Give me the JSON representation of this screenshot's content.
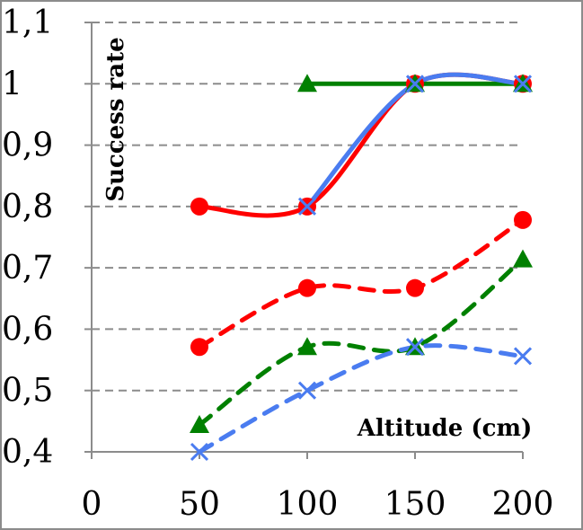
{
  "chart_data": {
    "type": "line",
    "xlabel": "Altitude (cm)",
    "ylabel": "Success rate",
    "xlim": [
      0,
      200
    ],
    "ylim": [
      0.4,
      1.1
    ],
    "grid": "horizontal dashed",
    "x_ticks": [
      "0",
      "50",
      "100",
      "150",
      "200"
    ],
    "y_ticks": [
      "0,4",
      "0,5",
      "0,6",
      "0,7",
      "0,8",
      "0,9",
      "1",
      "1,1"
    ],
    "series": [
      {
        "color": "#ff0000",
        "line_style": "solid",
        "marker": "circle",
        "points": [
          {
            "x": 50,
            "y": 0.8
          },
          {
            "x": 100,
            "y": 0.8
          },
          {
            "x": 150,
            "y": 1.0
          },
          {
            "x": 200,
            "y": 1.0
          }
        ]
      },
      {
        "color": "#008000",
        "line_style": "solid",
        "marker": "triangle",
        "points": [
          {
            "x": 100,
            "y": 1.0
          },
          {
            "x": 150,
            "y": 1.0
          },
          {
            "x": 200,
            "y": 1.0
          }
        ]
      },
      {
        "color": "#4a7cf0",
        "line_style": "solid",
        "marker": "x",
        "points": [
          {
            "x": 100,
            "y": 0.8
          },
          {
            "x": 150,
            "y": 1.0
          },
          {
            "x": 200,
            "y": 1.0
          }
        ]
      },
      {
        "color": "#ff0000",
        "line_style": "dashed",
        "marker": "circle",
        "points": [
          {
            "x": 50,
            "y": 0.571
          },
          {
            "x": 100,
            "y": 0.667
          },
          {
            "x": 150,
            "y": 0.667
          },
          {
            "x": 200,
            "y": 0.778
          }
        ]
      },
      {
        "color": "#008000",
        "line_style": "dashed",
        "marker": "triangle",
        "points": [
          {
            "x": 50,
            "y": 0.444
          },
          {
            "x": 100,
            "y": 0.571
          },
          {
            "x": 150,
            "y": 0.571
          },
          {
            "x": 200,
            "y": 0.714
          }
        ]
      },
      {
        "color": "#4a7cf0",
        "line_style": "dashed",
        "marker": "x",
        "points": [
          {
            "x": 50,
            "y": 0.4
          },
          {
            "x": 100,
            "y": 0.5
          },
          {
            "x": 150,
            "y": 0.571
          },
          {
            "x": 200,
            "y": 0.556
          }
        ]
      }
    ]
  }
}
